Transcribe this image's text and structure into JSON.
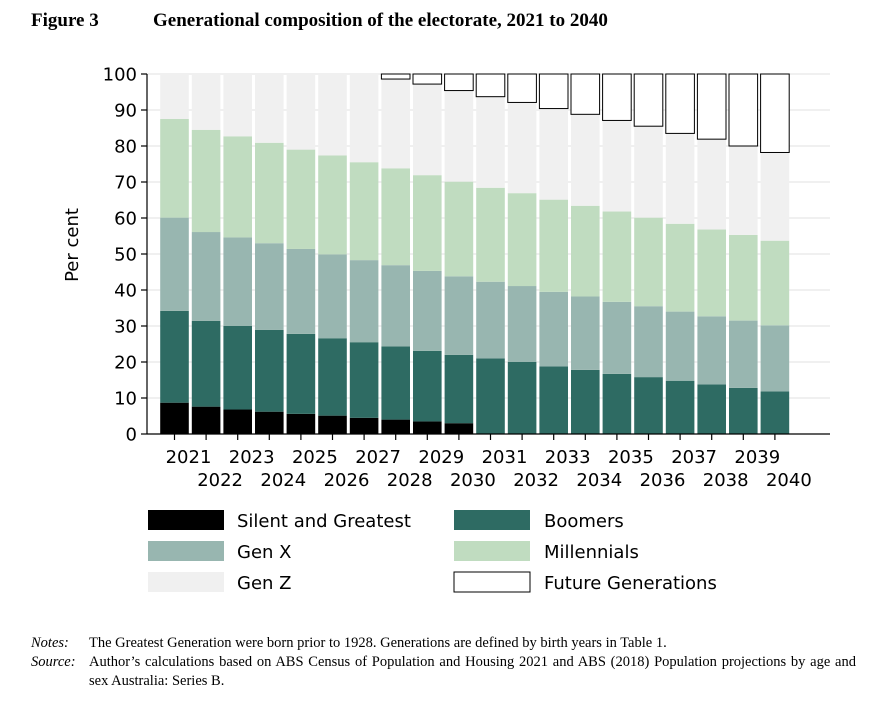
{
  "figure": {
    "label": "Figure 3",
    "title": "Generational composition of the electorate, 2021 to 2040"
  },
  "notes": {
    "notes_key": "Notes:",
    "notes_text": "The Greatest Generation were born prior to 1928. Generations are defined by birth years in Table 1.",
    "source_key": "Source:",
    "source_text": "Author’s calculations based on ABS Census of Population and Housing 2021 and ABS (2018) Population projections by age and sex Australia: Series B."
  },
  "chart_data": {
    "type": "bar",
    "stacked": true,
    "title": "",
    "xlabel": "",
    "ylabel": "Per cent",
    "ylim": [
      0,
      100
    ],
    "yticks": [
      0,
      10,
      20,
      30,
      40,
      50,
      60,
      70,
      80,
      90,
      100
    ],
    "grid": true,
    "legend_position": "bottom",
    "categories": [
      "2021",
      "2022",
      "2023",
      "2024",
      "2025",
      "2026",
      "2027",
      "2028",
      "2029",
      "2030",
      "2031",
      "2032",
      "2033",
      "2034",
      "2035",
      "2036",
      "2037",
      "2038",
      "2039",
      "2040"
    ],
    "series": [
      {
        "name": "Silent and Greatest",
        "color": "#000000",
        "values": [
          8.7,
          7.6,
          6.8,
          6.2,
          5.6,
          5.1,
          4.5,
          4.0,
          3.5,
          3.0,
          0,
          0,
          0,
          0,
          0,
          0,
          0,
          0,
          0,
          0
        ]
      },
      {
        "name": "Boomers",
        "color": "#2e6b63",
        "values": [
          25.5,
          23.8,
          23.2,
          22.7,
          22.2,
          21.5,
          21.0,
          20.3,
          19.6,
          19.0,
          21.0,
          20.0,
          18.8,
          17.8,
          16.7,
          15.8,
          14.8,
          13.8,
          12.8,
          11.8
        ]
      },
      {
        "name": "Gen X",
        "color": "#98b6b0",
        "values": [
          25.9,
          24.7,
          24.6,
          24.1,
          23.6,
          23.3,
          22.8,
          22.6,
          22.2,
          21.8,
          21.3,
          21.1,
          20.7,
          20.4,
          20.0,
          19.7,
          19.2,
          18.9,
          18.7,
          18.4
        ]
      },
      {
        "name": "Millennials",
        "color": "#c0dcc0",
        "values": [
          27.4,
          28.4,
          28.1,
          27.9,
          27.6,
          27.5,
          27.2,
          26.9,
          26.6,
          26.3,
          26.1,
          25.8,
          25.6,
          25.2,
          25.1,
          24.6,
          24.4,
          24.1,
          23.8,
          23.5
        ]
      },
      {
        "name": "Gen Z",
        "color": "#f0f0f0",
        "values": [
          12.5,
          15.5,
          17.3,
          19.1,
          21.0,
          22.6,
          24.5,
          24.8,
          25.3,
          25.3,
          25.3,
          25.2,
          25.3,
          25.4,
          25.3,
          25.4,
          25.1,
          25.1,
          24.7,
          24.5
        ]
      },
      {
        "name": "Future Generations",
        "color": "#ffffff",
        "values": [
          0,
          0,
          0,
          0,
          0,
          0,
          0,
          1.4,
          2.8,
          4.6,
          6.3,
          7.9,
          9.6,
          11.2,
          12.9,
          14.5,
          16.5,
          18.1,
          20.0,
          21.8
        ]
      }
    ]
  }
}
